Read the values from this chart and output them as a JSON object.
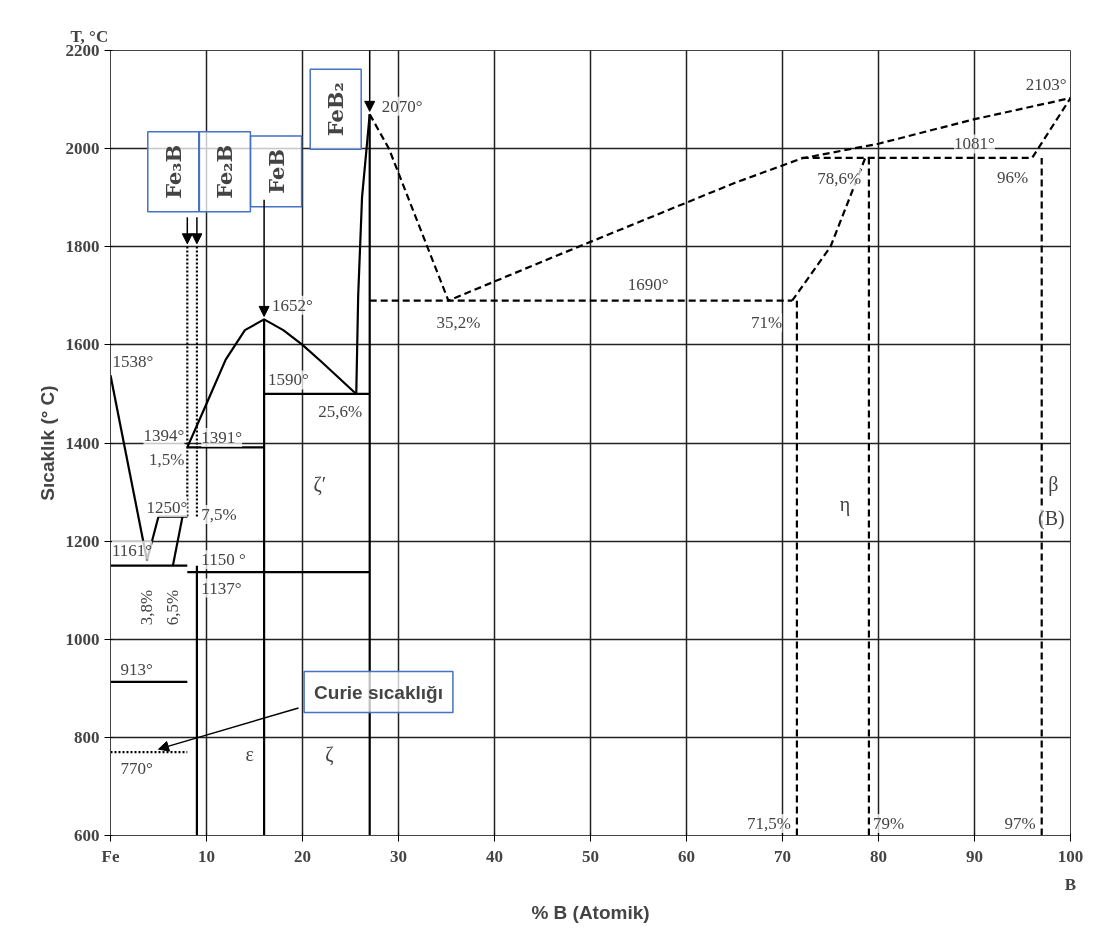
{
  "chart_data": {
    "type": "line",
    "title": "T, °C",
    "xlabel": "% B (Atomik)",
    "ylabel": "Sıcaklık (° C)",
    "xlim": [
      0,
      100
    ],
    "ylim": [
      600,
      2200
    ],
    "xticks": [
      {
        "value": 0,
        "label": "Fe"
      },
      10,
      20,
      30,
      40,
      50,
      60,
      70,
      80,
      90,
      100
    ],
    "yticks": [
      600,
      800,
      1000,
      1200,
      1400,
      1600,
      1800,
      2000,
      2200
    ],
    "grid": true,
    "marker": "none",
    "series": [
      {
        "color": "#000000",
        "line_style": "solid",
        "x": [
          0,
          3.8
        ],
        "values": [
          1538,
          1161
        ]
      },
      {
        "color": "#000000",
        "line_style": "solid",
        "x": [
          0,
          8
        ],
        "values": [
          1150,
          1150
        ]
      },
      {
        "color": "#000000",
        "line_style": "solid",
        "x": [
          3.8,
          5,
          8
        ],
        "values": [
          1161,
          1250,
          1250
        ]
      },
      {
        "color": "#000000",
        "line_style": "solid",
        "x": [
          6.5,
          7.5
        ],
        "values": [
          1150,
          1250
        ]
      },
      {
        "color": "#000000",
        "line_style": "solid",
        "x": [
          8,
          10,
          12,
          14,
          16,
          18,
          20,
          22,
          25.6
        ],
        "values": [
          1391,
          1480,
          1570,
          1630,
          1652,
          1630,
          1600,
          1565,
          1500
        ]
      },
      {
        "color": "#000000",
        "line_style": "solid",
        "x": [
          8,
          16
        ],
        "values": [
          1391,
          1391
        ]
      },
      {
        "color": "#000000",
        "line_style": "solid",
        "x": [
          16,
          16
        ],
        "values": [
          600,
          1652
        ]
      },
      {
        "color": "#000000",
        "line_style": "solid",
        "x": [
          16,
          27
        ],
        "values": [
          1500,
          1500
        ]
      },
      {
        "color": "#000000",
        "line_style": "solid",
        "x": [
          25.6,
          25.8,
          26.2,
          27
        ],
        "values": [
          1500,
          1700,
          1900,
          2070
        ]
      },
      {
        "color": "#000000",
        "line_style": "solid",
        "x": [
          27,
          27
        ],
        "values": [
          600,
          2070
        ]
      },
      {
        "color": "#000000",
        "line_style": "solid",
        "x": [
          8,
          27
        ],
        "values": [
          1137,
          1137
        ]
      },
      {
        "color": "#000000",
        "line_style": "solid",
        "x": [
          0,
          8
        ],
        "values": [
          913,
          913
        ]
      },
      {
        "color": "#000000",
        "line_style": "solid",
        "x": [
          9,
          9
        ],
        "values": [
          600,
          1150
        ]
      },
      {
        "color": "#000000",
        "line_style": "dotted",
        "x": [
          0,
          8
        ],
        "values": [
          770,
          770
        ]
      },
      {
        "color": "#000000",
        "line_style": "dotted",
        "x": [
          8,
          8
        ],
        "values": [
          1250,
          1800
        ]
      },
      {
        "color": "#000000",
        "line_style": "dotted",
        "x": [
          9,
          9
        ],
        "values": [
          1250,
          1800
        ]
      },
      {
        "color": "#000000",
        "line_style": "dashed",
        "x": [
          27,
          29,
          32,
          35.2,
          45,
          55,
          65,
          72,
          80,
          90,
          100
        ],
        "values": [
          2070,
          2000,
          1850,
          1690,
          1770,
          1850,
          1930,
          1980,
          2010,
          2060,
          2103
        ]
      },
      {
        "color": "#000000",
        "line_style": "dashed",
        "x": [
          27,
          71
        ],
        "values": [
          1690,
          1690
        ]
      },
      {
        "color": "#000000",
        "line_style": "dashed",
        "x": [
          71,
          75,
          78.6
        ],
        "values": [
          1690,
          1800,
          1980
        ]
      },
      {
        "color": "#000000",
        "line_style": "dashed",
        "x": [
          72,
          96,
          100
        ],
        "values": [
          1981,
          1981,
          2103
        ]
      },
      {
        "color": "#000000",
        "line_style": "dashed",
        "x": [
          71.5,
          71.5
        ],
        "values": [
          600,
          1690
        ]
      },
      {
        "color": "#000000",
        "line_style": "dashed",
        "x": [
          79,
          79
        ],
        "values": [
          600,
          1980
        ]
      },
      {
        "color": "#000000",
        "line_style": "dashed",
        "x": [
          97,
          97
        ],
        "values": [
          600,
          1981
        ]
      }
    ],
    "annotations": [
      {
        "text": "Fe₃B",
        "x": 8,
        "y": 1800
      },
      {
        "text": "Fe₂B",
        "x": 9,
        "y": 1800
      },
      {
        "text": "FeB",
        "x": 16,
        "y": 1652
      },
      {
        "text": "FeB₂",
        "x": 27,
        "y": 2070
      },
      {
        "text": "3,8%",
        "x": 3.8,
        "y": 1150
      },
      {
        "text": "6,5%",
        "x": 6.5,
        "y": 1150
      },
      {
        "text": "Curie sıcaklığı",
        "x": 5,
        "y": 770
      },
      {
        "text": "2070°",
        "x": 27,
        "y": 2070
      },
      {
        "text": "1652°",
        "x": 16,
        "y": 1652
      },
      {
        "text": "1538°",
        "x": 0,
        "y": 1538
      },
      {
        "text": "1394°",
        "x": 8,
        "y": 1394
      },
      {
        "text": "1391°",
        "x": 8,
        "y": 1391
      },
      {
        "text": "1,5%",
        "x": 8,
        "y": 1391
      },
      {
        "text": "1250°",
        "x": 8,
        "y": 1250
      },
      {
        "text": "7,5%",
        "x": 8,
        "y": 1250
      },
      {
        "text": "1161°",
        "x": 3.8,
        "y": 1161
      },
      {
        "text": "1150 °",
        "x": 8,
        "y": 1150
      },
      {
        "text": "1137°",
        "x": 8,
        "y": 1137
      },
      {
        "text": "913°",
        "x": 0,
        "y": 913
      },
      {
        "text": "770°",
        "x": 0,
        "y": 770
      },
      {
        "text": "1590°",
        "x": 16,
        "y": 1500
      },
      {
        "text": "25,6%",
        "x": 25.6,
        "y": 1500
      },
      {
        "text": "35,2%",
        "x": 35.2,
        "y": 1690
      },
      {
        "text": "1690°",
        "x": 56,
        "y": 1690
      },
      {
        "text": "71%",
        "x": 71,
        "y": 1690
      },
      {
        "text": "78,6%",
        "x": 78.6,
        "y": 1980
      },
      {
        "text": "1081°",
        "x": 90,
        "y": 1981
      },
      {
        "text": "96%",
        "x": 96,
        "y": 1981
      },
      {
        "text": "2103°",
        "x": 100,
        "y": 2103
      },
      {
        "text": "71,5%",
        "x": 71.5,
        "y": 600
      },
      {
        "text": "79%",
        "x": 79,
        "y": 600
      },
      {
        "text": "97%",
        "x": 97,
        "y": 600
      },
      "ζ′",
      "ε",
      "ζ",
      "η",
      "β",
      "(B)",
      "B"
    ]
  }
}
